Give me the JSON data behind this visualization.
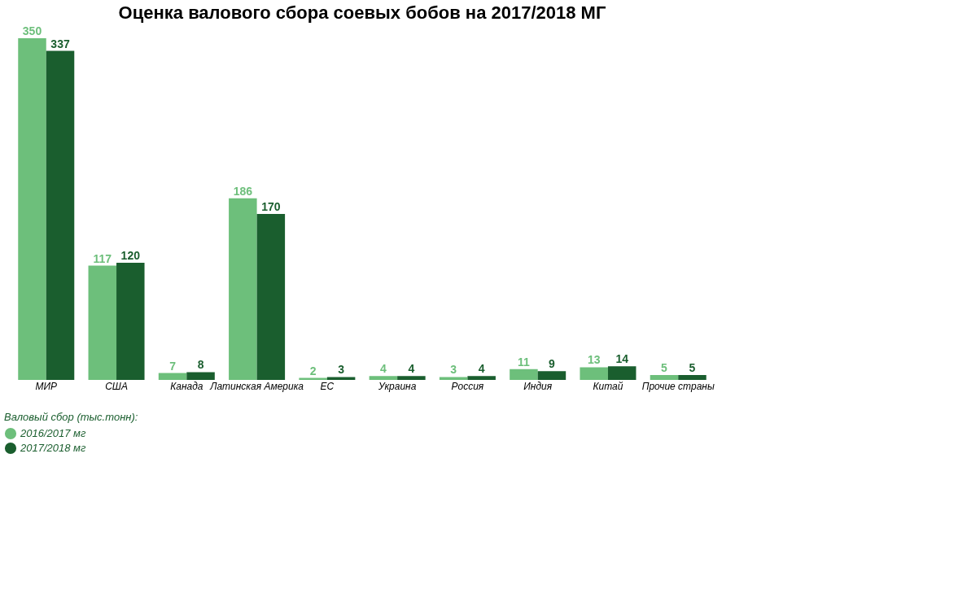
{
  "chart_data": {
    "type": "bar",
    "title": "Оценка валового сбора соевых бобов на 2017/2018 МГ",
    "categories": [
      "МИР",
      "США",
      "Канада",
      "Латинская Америка",
      "ЕС",
      "Украина",
      "Россия",
      "Индия",
      "Китай",
      "Прочие страны"
    ],
    "series": [
      {
        "name": "2016/2017 мг",
        "color": "#6dbf7b",
        "values": [
          350,
          117,
          7,
          186,
          2,
          4,
          3,
          11,
          13,
          5
        ]
      },
      {
        "name": "2017/2018 мг",
        "color": "#1a5e2e",
        "values": [
          337,
          120,
          8,
          170,
          3,
          4,
          4,
          9,
          14,
          5
        ]
      }
    ],
    "legend_title": "Валовый сбор (тыс.тонн):",
    "legend": "bottom left",
    "data_labels": true,
    "grid": false
  }
}
